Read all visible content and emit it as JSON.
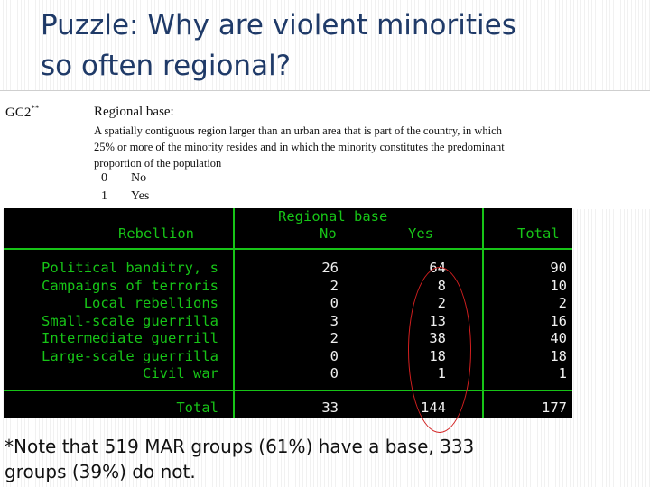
{
  "title": {
    "line1": "Puzzle: Why are violent minorities",
    "line2": "so often regional?"
  },
  "codebook": {
    "code": "GC2",
    "code_mark": "**",
    "heading": "Regional base:",
    "definition_lines": [
      "A spatially contiguous region larger than an urban area that is part of the country, in which",
      "25% or more of the minority resides and in which the minority constitutes the predominant",
      "proportion of the population"
    ],
    "options": [
      {
        "value": "0",
        "label": "No"
      },
      {
        "value": "1",
        "label": "Yes"
      }
    ]
  },
  "table": {
    "col_group_header": "Regional base",
    "row_var_header": "Rebellion",
    "col_headers": [
      "No",
      "Yes",
      "Total"
    ],
    "rows": [
      {
        "label": "Political banditry, s",
        "no": "26",
        "yes": "64",
        "total": "90"
      },
      {
        "label": "Campaigns of terroris",
        "no": "2",
        "yes": "8",
        "total": "10"
      },
      {
        "label": "Local rebellions",
        "no": "0",
        "yes": "2",
        "total": "2"
      },
      {
        "label": "Small-scale guerrilla",
        "no": "3",
        "yes": "13",
        "total": "16"
      },
      {
        "label": "Intermediate guerrill",
        "no": "2",
        "yes": "38",
        "total": "40"
      },
      {
        "label": "Large-scale guerrilla",
        "no": "0",
        "yes": "18",
        "total": "18"
      },
      {
        "label": "Civil war",
        "no": "0",
        "yes": "1",
        "total": "1"
      }
    ],
    "total_row": {
      "label": "Total",
      "no": "33",
      "yes": "144",
      "total": "177"
    }
  },
  "note": {
    "line1": "*Note that 519 MAR groups (61%) have a base, 333",
    "line2": "groups (39%) do not."
  },
  "colors": {
    "title": "#1f3a68",
    "terminal_bg": "#000000",
    "terminal_green": "#17c417",
    "terminal_text": "#f0f0f0",
    "highlight": "#d21f1f"
  }
}
